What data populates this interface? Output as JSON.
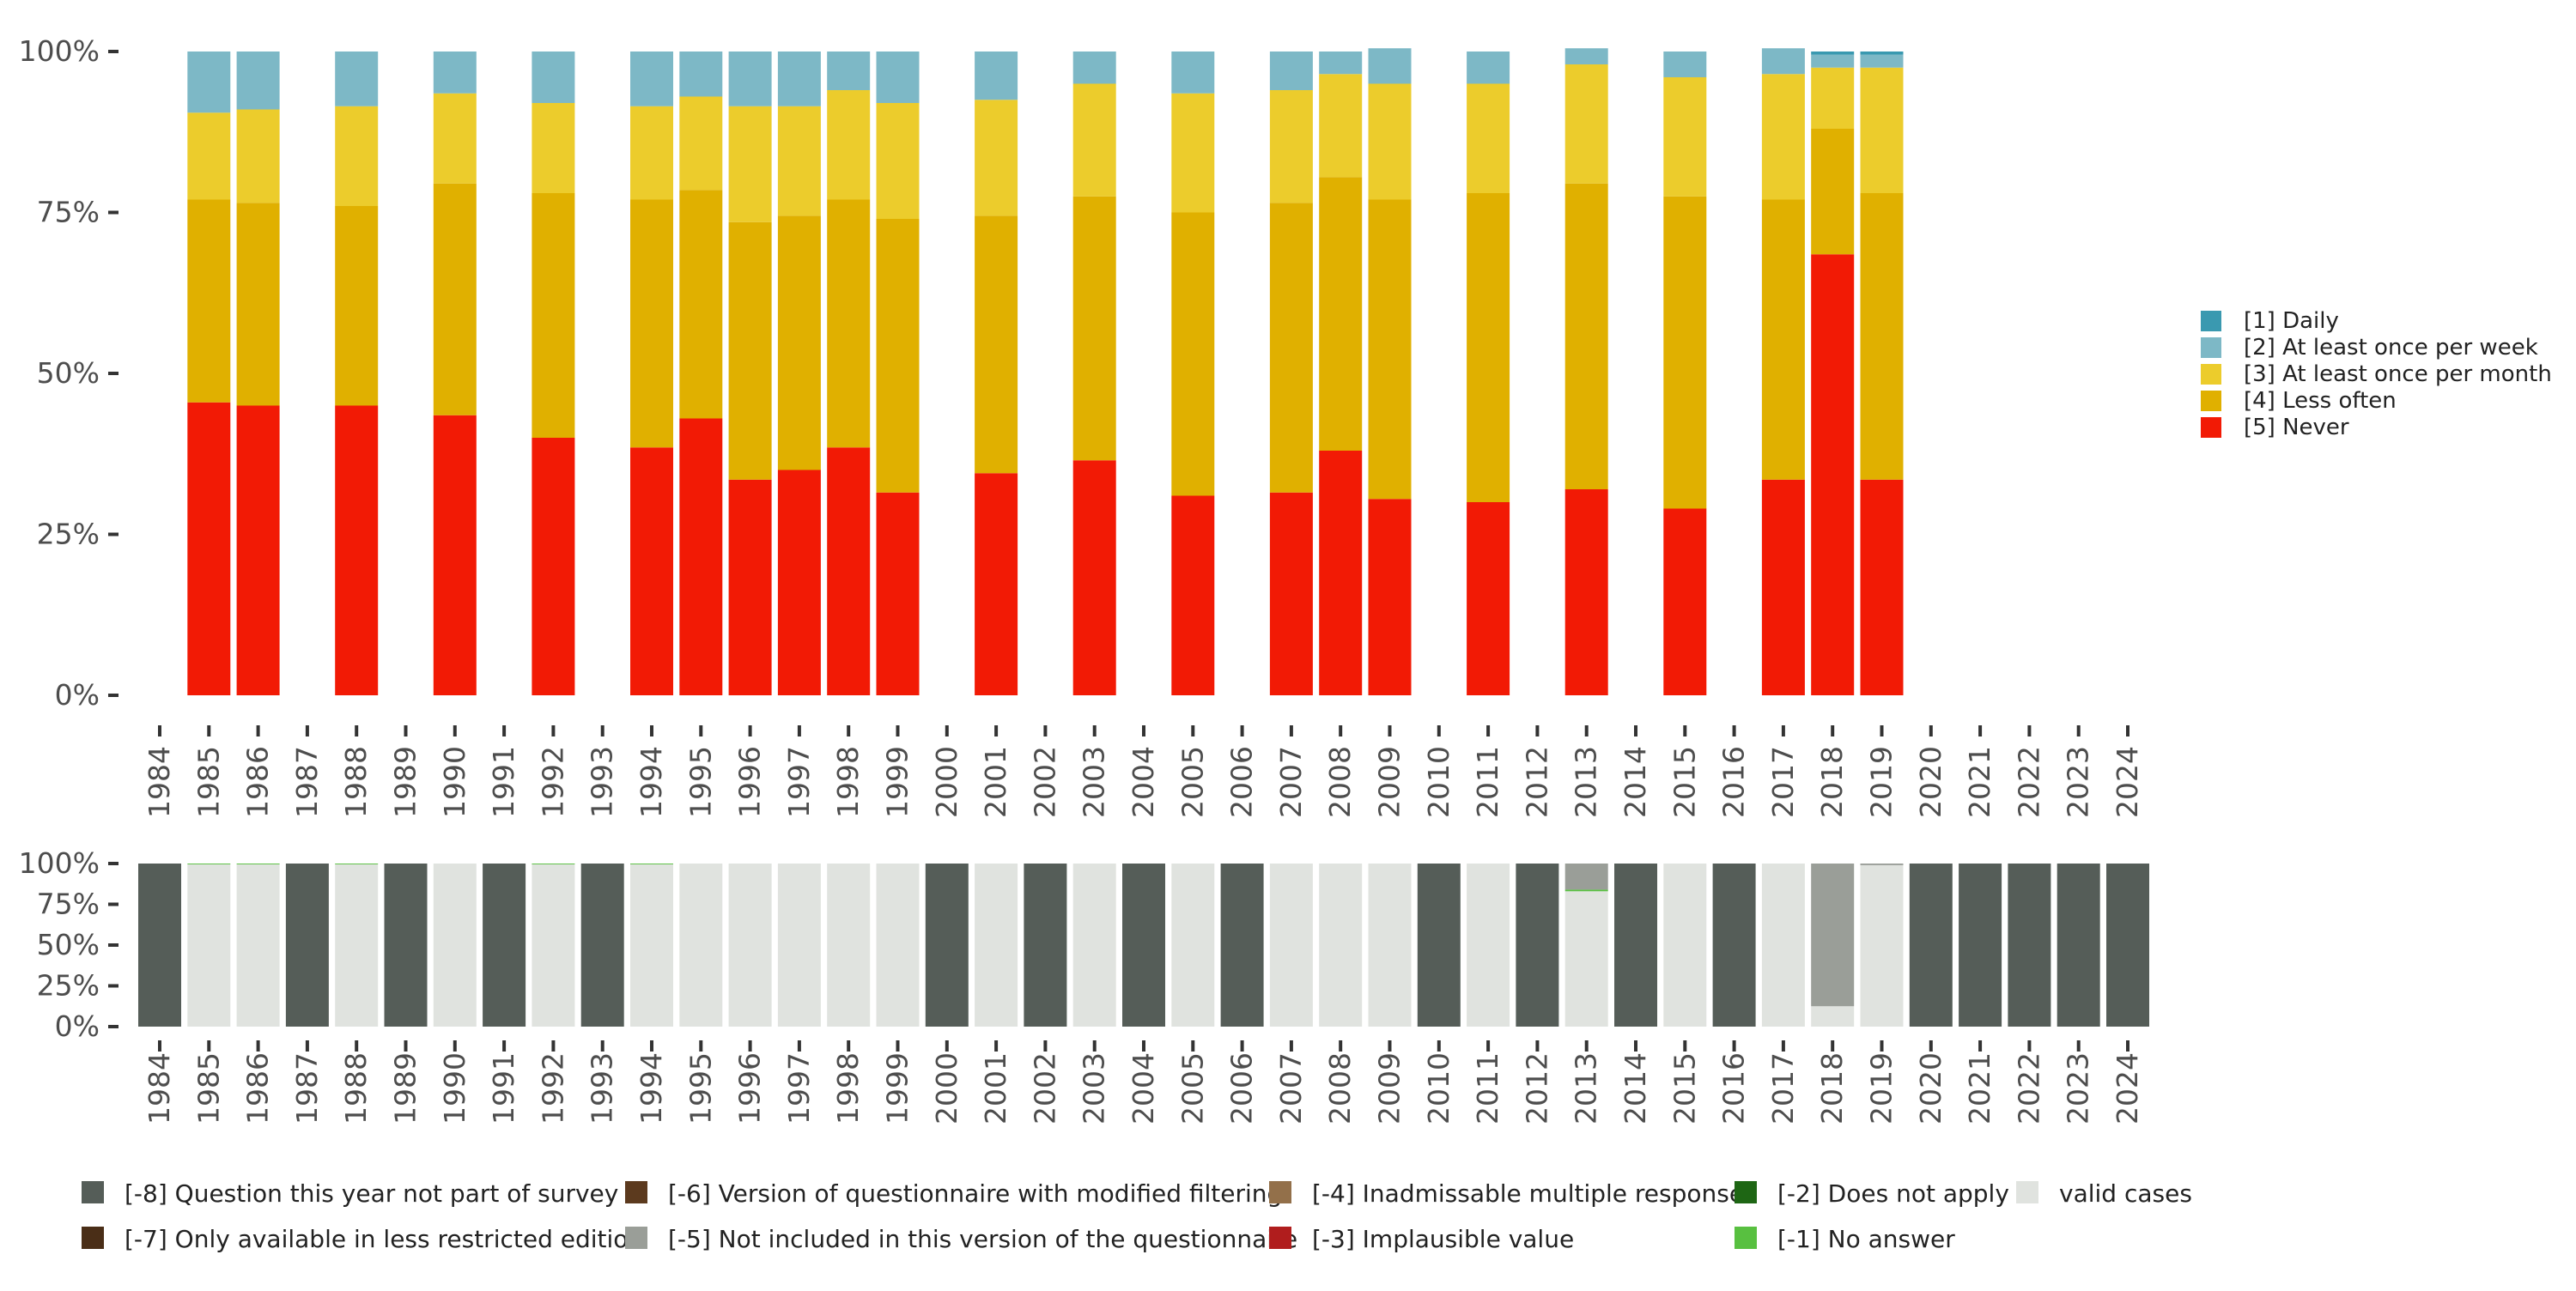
{
  "colors": {
    "daily": "#3a99b0",
    "weekly": "#7db8c6",
    "monthly": "#eccc2c",
    "less_often": "#e0b000",
    "never": "#f21a05",
    "m8": "#555d58",
    "m7": "#4a2e17",
    "m6": "#5c3a1e",
    "m5": "#9a9e98",
    "m4": "#93704a",
    "m3": "#b01d1d",
    "m2": "#1e6614",
    "m1": "#58c040",
    "valid": "#e0e3df"
  },
  "chart_data": [
    {
      "type": "bar",
      "stacked": true,
      "title": "",
      "xlabel": "",
      "ylabel": "",
      "ylim": [
        0,
        100
      ],
      "y_ticks": [
        "0%",
        "25%",
        "50%",
        "75%",
        "100%"
      ],
      "categories": [
        "1984",
        "1985",
        "1986",
        "1987",
        "1988",
        "1989",
        "1990",
        "1991",
        "1992",
        "1993",
        "1994",
        "1995",
        "1996",
        "1997",
        "1998",
        "1999",
        "2000",
        "2001",
        "2002",
        "2003",
        "2004",
        "2005",
        "2006",
        "2007",
        "2008",
        "2009",
        "2010",
        "2011",
        "2012",
        "2013",
        "2014",
        "2015",
        "2016",
        "2017",
        "2018",
        "2019",
        "2020",
        "2021",
        "2022",
        "2023",
        "2024"
      ],
      "series": [
        {
          "key": "never",
          "name": "[5] Never",
          "values": [
            null,
            45.5,
            45,
            null,
            45,
            null,
            43.5,
            null,
            40,
            null,
            38.5,
            43,
            33.5,
            35,
            38.5,
            31.5,
            null,
            34.5,
            null,
            36.5,
            null,
            31,
            null,
            31.5,
            38,
            30.5,
            null,
            30,
            null,
            32,
            null,
            29,
            null,
            33.5,
            68.5,
            33.5,
            null,
            null,
            null,
            null,
            null
          ]
        },
        {
          "key": "less_often",
          "name": "[4] Less often",
          "values": [
            null,
            31.5,
            31.5,
            null,
            31,
            null,
            36,
            null,
            38,
            null,
            38.5,
            35.5,
            40,
            39.5,
            38.5,
            42.5,
            null,
            40,
            null,
            41,
            null,
            44,
            null,
            45,
            42.5,
            46.5,
            null,
            48,
            null,
            47.5,
            null,
            48.5,
            null,
            43.5,
            19.5,
            44.5,
            null,
            null,
            null,
            null,
            null
          ]
        },
        {
          "key": "monthly",
          "name": "[3] At least once per month",
          "values": [
            null,
            13.5,
            14.5,
            null,
            15.5,
            null,
            14,
            null,
            14,
            null,
            14.5,
            14.5,
            18,
            17,
            17,
            18,
            null,
            18,
            null,
            17.5,
            null,
            18.5,
            null,
            17.5,
            16,
            18,
            null,
            17,
            null,
            18.5,
            null,
            18.5,
            null,
            19.5,
            9.5,
            19.5,
            null,
            null,
            null,
            null,
            null
          ]
        },
        {
          "key": "weekly",
          "name": "[2] At least once per week",
          "values": [
            null,
            9.5,
            9,
            null,
            8.5,
            null,
            6.5,
            null,
            8,
            null,
            8.5,
            7,
            8.5,
            8.5,
            6,
            8,
            null,
            7.5,
            null,
            5,
            null,
            6.5,
            null,
            6,
            3.5,
            5.5,
            null,
            5,
            null,
            2.5,
            null,
            4,
            null,
            4,
            2,
            2,
            null,
            null,
            null,
            null,
            null
          ]
        },
        {
          "key": "daily",
          "name": "[1] Daily",
          "values": [
            null,
            0,
            0,
            null,
            0,
            null,
            0,
            null,
            0,
            null,
            0,
            0,
            0,
            0,
            0,
            0,
            null,
            0,
            null,
            0,
            null,
            0,
            null,
            0,
            0,
            0,
            null,
            0,
            null,
            0,
            null,
            0,
            null,
            0,
            0.5,
            0.5,
            null,
            null,
            null,
            null,
            null
          ]
        }
      ],
      "legend": {
        "position": "right",
        "entries": [
          {
            "key": "daily",
            "label": "[1] Daily"
          },
          {
            "key": "weekly",
            "label": "[2] At least once per week"
          },
          {
            "key": "monthly",
            "label": "[3] At least once per month"
          },
          {
            "key": "less_often",
            "label": "[4] Less often"
          },
          {
            "key": "never",
            "label": "[5] Never"
          }
        ]
      }
    },
    {
      "type": "bar",
      "stacked": true,
      "title": "",
      "xlabel": "",
      "ylabel": "",
      "ylim": [
        0,
        100
      ],
      "y_ticks": [
        "0%",
        "25%",
        "50%",
        "75%",
        "100%"
      ],
      "categories": [
        "1984",
        "1985",
        "1986",
        "1987",
        "1988",
        "1989",
        "1990",
        "1991",
        "1992",
        "1993",
        "1994",
        "1995",
        "1996",
        "1997",
        "1998",
        "1999",
        "2000",
        "2001",
        "2002",
        "2003",
        "2004",
        "2005",
        "2006",
        "2007",
        "2008",
        "2009",
        "2010",
        "2011",
        "2012",
        "2013",
        "2014",
        "2015",
        "2016",
        "2017",
        "2018",
        "2019",
        "2020",
        "2021",
        "2022",
        "2023",
        "2024"
      ],
      "series": [
        {
          "key": "valid",
          "name": "valid cases",
          "values": [
            0,
            99.5,
            99.5,
            0,
            99.5,
            0,
            100,
            0,
            99.5,
            0,
            99.5,
            100,
            100,
            100,
            100,
            100,
            0,
            100,
            0,
            100,
            0,
            100,
            0,
            100,
            100,
            100,
            0,
            100,
            0,
            83,
            0,
            100,
            0,
            100,
            12.5,
            99,
            0,
            0,
            0,
            0,
            0
          ]
        },
        {
          "key": "m1",
          "name": "[-1] No answer",
          "values": [
            0,
            0.5,
            0.5,
            0,
            0.5,
            0,
            0,
            0,
            0.5,
            0,
            0.5,
            0,
            0,
            0,
            0,
            0,
            0,
            0,
            0,
            0,
            0,
            0,
            0,
            0,
            0,
            0,
            0,
            0,
            0,
            1,
            0,
            0,
            0,
            0,
            0,
            0,
            0,
            0,
            0,
            0,
            0
          ]
        },
        {
          "key": "m5",
          "name": "[-5] Not included in this version of the questionnaire",
          "values": [
            0,
            0,
            0,
            0,
            0,
            0,
            0,
            0,
            0,
            0,
            0,
            0,
            0,
            0,
            0,
            0,
            0,
            0,
            0,
            0,
            0,
            0,
            0,
            0,
            0,
            0,
            0,
            0,
            0,
            16,
            0,
            0,
            0,
            0,
            87.5,
            1,
            0,
            0,
            0,
            0,
            0
          ]
        },
        {
          "key": "m8",
          "name": "[-8] Question this year not part of survey",
          "values": [
            100,
            0,
            0,
            100,
            0,
            100,
            0,
            100,
            0,
            100,
            0,
            0,
            0,
            0,
            0,
            0,
            100,
            0,
            100,
            0,
            100,
            0,
            100,
            0,
            0,
            0,
            100,
            0,
            100,
            0,
            100,
            0,
            100,
            0,
            0,
            0,
            100,
            100,
            100,
            100,
            100
          ]
        }
      ],
      "legend": {
        "position": "bottom",
        "entries": [
          {
            "key": "m8",
            "label": "[-8] Question this year not part of survey"
          },
          {
            "key": "m7",
            "label": "[-7] Only available in less restricted edition"
          },
          {
            "key": "m6",
            "label": "[-6] Version of questionnaire with modified filtering"
          },
          {
            "key": "m5",
            "label": "[-5] Not included in this version of the questionnaire"
          },
          {
            "key": "m4",
            "label": "[-4] Inadmissable multiple response"
          },
          {
            "key": "m3",
            "label": "[-3] Implausible value"
          },
          {
            "key": "m2",
            "label": "[-2] Does not apply"
          },
          {
            "key": "m1",
            "label": "[-1] No answer"
          },
          {
            "key": "valid",
            "label": "valid cases"
          }
        ]
      }
    }
  ]
}
